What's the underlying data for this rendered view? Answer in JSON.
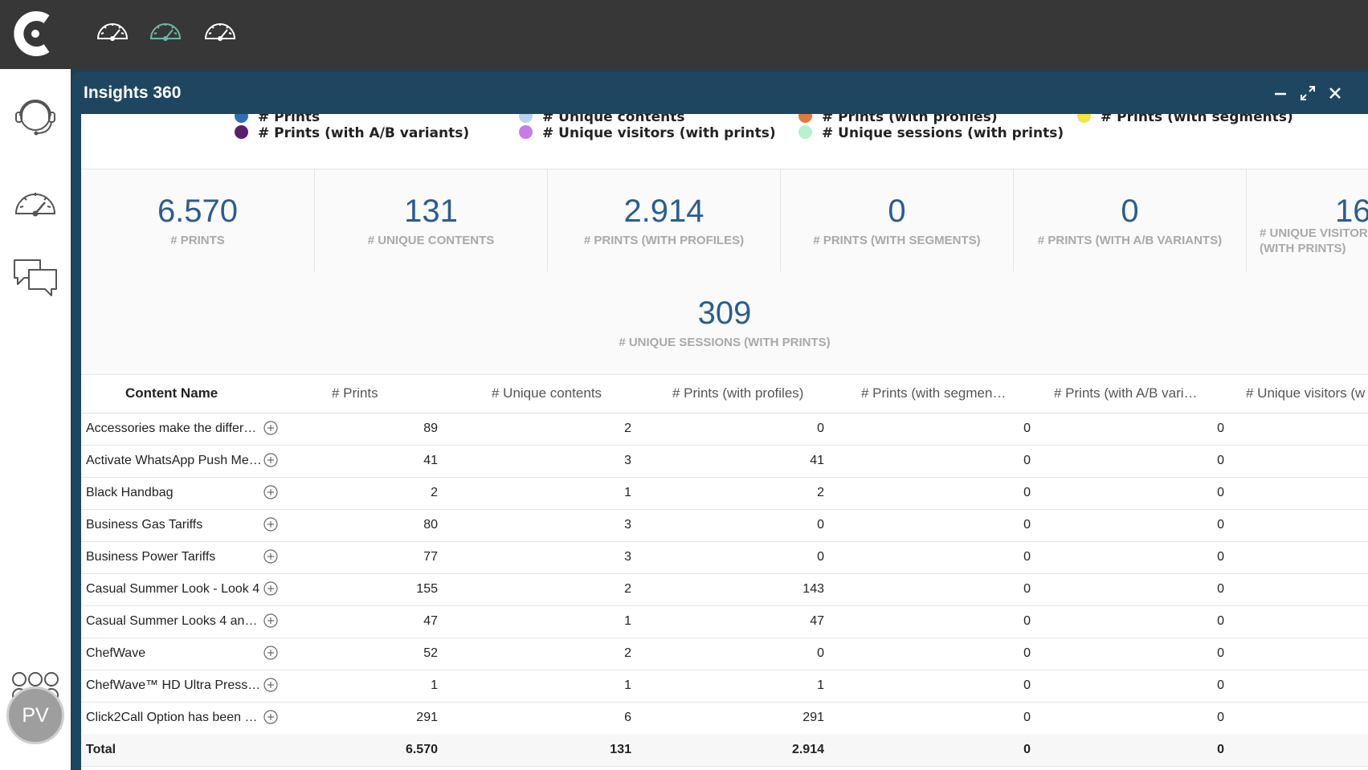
{
  "window": {
    "title": "Insights 360"
  },
  "legend": {
    "cut_items": [
      {
        "label": "# Prints",
        "color": "#2e6fb6"
      },
      {
        "label": "# Unique contents",
        "color": "#b9d3f0"
      },
      {
        "label": "# Prints (with profiles)",
        "color": "#e07b39"
      },
      {
        "label": "# Prints (with segments)",
        "color": "#f2e54a"
      }
    ],
    "items": [
      {
        "label": "# Prints (with A/B variants)",
        "color": "#5a1f6b"
      },
      {
        "label": "# Unique visitors (with prints)",
        "color": "#c77ae8"
      },
      {
        "label": "# Unique sessions (with prints)",
        "color": "#b6f2cf"
      }
    ]
  },
  "kpis": [
    {
      "value": "6.570",
      "label": "# Prints"
    },
    {
      "value": "131",
      "label": "# Unique contents"
    },
    {
      "value": "2.914",
      "label": "# Prints (with profiles)"
    },
    {
      "value": "0",
      "label": "# Prints (with segments)"
    },
    {
      "value": "0",
      "label": "# Prints (with A/B variants)"
    },
    {
      "value": "16",
      "label": "# Unique visitors (with prints)"
    }
  ],
  "kpi_wide": {
    "value": "309",
    "label": "# Unique sessions (with prints)"
  },
  "table": {
    "headers": [
      "Content Name",
      "# Prints",
      "# Unique contents",
      "# Prints (with profiles)",
      "# Prints (with segmen…",
      "# Prints (with A/B vari…",
      "# Unique visitors (w"
    ],
    "rows": [
      {
        "name": "Accessories make the differ…",
        "v": [
          "89",
          "2",
          "0",
          "0",
          "0"
        ]
      },
      {
        "name": "Activate WhatsApp Push Me…",
        "v": [
          "41",
          "3",
          "41",
          "0",
          "0"
        ]
      },
      {
        "name": "Black Handbag",
        "v": [
          "2",
          "1",
          "2",
          "0",
          "0"
        ]
      },
      {
        "name": "Business Gas Tariffs",
        "v": [
          "80",
          "3",
          "0",
          "0",
          "0"
        ]
      },
      {
        "name": "Business Power Tariffs",
        "v": [
          "77",
          "3",
          "0",
          "0",
          "0"
        ]
      },
      {
        "name": "Casual Summer Look - Look 4",
        "v": [
          "155",
          "2",
          "143",
          "0",
          "0"
        ]
      },
      {
        "name": "Casual Summer Looks 4 and…",
        "v": [
          "47",
          "1",
          "47",
          "0",
          "0"
        ]
      },
      {
        "name": "ChefWave",
        "v": [
          "52",
          "2",
          "0",
          "0",
          "0"
        ]
      },
      {
        "name": "ChefWave™ HD Ultra Pressu…",
        "v": [
          "1",
          "1",
          "1",
          "0",
          "0"
        ]
      },
      {
        "name": "Click2Call Option has been e…",
        "v": [
          "291",
          "6",
          "291",
          "0",
          "0"
        ]
      }
    ],
    "total": {
      "name": "Total",
      "v": [
        "6.570",
        "131",
        "2.914",
        "0",
        "0"
      ]
    }
  },
  "user": {
    "initials": "PV"
  },
  "icons": {
    "top": [
      "gauge-icon",
      "gauge-active-icon",
      "gauge-icon"
    ],
    "side": [
      "support-agent-icon",
      "gauge-icon",
      "chat-icon",
      "apps-grid-icon"
    ],
    "accent": "#2a5d91"
  }
}
